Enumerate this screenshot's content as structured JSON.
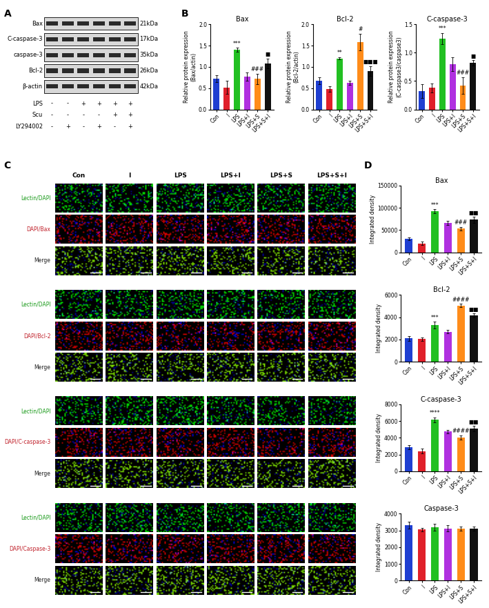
{
  "blot": {
    "panel": "A",
    "proteins": [
      {
        "name": "Bax",
        "kda": "21kDa"
      },
      {
        "name": "C-caspase-3",
        "kda": "17kDa"
      },
      {
        "name": "caspase-3",
        "kda": "35kDa"
      },
      {
        "name": "Bcl-2",
        "kda": "26kDa"
      },
      {
        "name": "β-actin",
        "kda": "42kDa"
      }
    ],
    "treatments": [
      {
        "name": "LPS",
        "marks": [
          "-",
          "-",
          "+",
          "+",
          "+",
          "+"
        ]
      },
      {
        "name": "Scu",
        "marks": [
          "-",
          "-",
          "-",
          "-",
          "+",
          "+"
        ]
      },
      {
        "name": "LY294002",
        "marks": [
          "-",
          "+",
          "-",
          "+",
          "-",
          "+"
        ]
      }
    ]
  },
  "microscopy": {
    "panel": "C",
    "columns": [
      "Con",
      "I",
      "LPS",
      "LPS+I",
      "LPS+S",
      "LPS+S+I"
    ],
    "groups": [
      [
        "Lectin/DAPI",
        "DAPI/Bax",
        "Merge"
      ],
      [
        "Lectin/DAPI",
        "DAPI/Bcl-2",
        "Merge"
      ],
      [
        "Lectin/DAPI",
        "DAPI/C-caspase-3",
        "Merge"
      ],
      [
        "Lectin/DAPI",
        "DAPI/Caspase-3",
        "Merge"
      ]
    ]
  },
  "chart_data": [
    {
      "type": "bar",
      "panel": "B",
      "title": "Bax",
      "ylabel": "Relative protein expression\n(Bax/actin)",
      "categories": [
        "Con",
        "I",
        "LPS",
        "LPS+I",
        "LPS+S",
        "LPS+S+I"
      ],
      "values": [
        0.72,
        0.52,
        1.4,
        0.77,
        0.72,
        1.08
      ],
      "errors": [
        0.08,
        0.15,
        0.05,
        0.1,
        0.12,
        0.12
      ],
      "colors": [
        "#1f3fd1",
        "#e0202a",
        "#22c022",
        "#b030e0",
        "#ff8c1a",
        "#111111"
      ],
      "ylim": [
        0,
        2.0
      ],
      "yticks": [
        {
          "value": 0,
          "label": "0.0"
        },
        {
          "value": 0.5,
          "label": "0.5"
        },
        {
          "value": 1.0,
          "label": "1.0"
        },
        {
          "value": 1.5,
          "label": "1.5"
        },
        {
          "value": 2.0,
          "label": "2.0"
        }
      ],
      "annotations": [
        {
          "category": "LPS",
          "text": "***"
        },
        {
          "category": "LPS+S",
          "text": "###"
        },
        {
          "category": "LPS+S+I",
          "text": "■"
        }
      ]
    },
    {
      "type": "bar",
      "panel": "B",
      "title": "Bcl-2",
      "ylabel": "Relative protein expression\n(Bcl-2/actin)",
      "categories": [
        "Con",
        "I",
        "LPS",
        "LPS+I",
        "LPS+S",
        "LPS+S+I"
      ],
      "values": [
        0.68,
        0.48,
        1.2,
        0.62,
        1.58,
        0.9
      ],
      "errors": [
        0.08,
        0.06,
        0.03,
        0.05,
        0.2,
        0.12
      ],
      "colors": [
        "#1f3fd1",
        "#e0202a",
        "#22c022",
        "#b030e0",
        "#ff8c1a",
        "#111111"
      ],
      "ylim": [
        0,
        2.0
      ],
      "yticks": [
        {
          "value": 0,
          "label": "0.0"
        },
        {
          "value": 0.5,
          "label": "0.5"
        },
        {
          "value": 1.0,
          "label": "1.0"
        },
        {
          "value": 1.5,
          "label": "1.5"
        },
        {
          "value": 2.0,
          "label": "2.0"
        }
      ],
      "annotations": [
        {
          "category": "LPS",
          "text": "**"
        },
        {
          "category": "LPS+S",
          "text": "#"
        },
        {
          "category": "LPS+S+I",
          "text": "■■■"
        }
      ]
    },
    {
      "type": "bar",
      "panel": "B",
      "title": "C-caspase-3",
      "ylabel": "Relative protein expression\n(C-caspase3/caspase3)",
      "categories": [
        "Con",
        "I",
        "LPS",
        "LPS+I",
        "LPS+S",
        "LPS+S+I"
      ],
      "values": [
        0.32,
        0.38,
        1.25,
        0.8,
        0.42,
        0.82
      ],
      "errors": [
        0.12,
        0.08,
        0.1,
        0.12,
        0.15,
        0.05
      ],
      "colors": [
        "#1f3fd1",
        "#e0202a",
        "#22c022",
        "#b030e0",
        "#ff8c1a",
        "#111111"
      ],
      "ylim": [
        0,
        1.5
      ],
      "yticks": [
        {
          "value": 0,
          "label": "0.0"
        },
        {
          "value": 0.5,
          "label": "0.5"
        },
        {
          "value": 1.0,
          "label": "1.0"
        },
        {
          "value": 1.5,
          "label": "1.5"
        }
      ],
      "annotations": [
        {
          "category": "LPS",
          "text": "***"
        },
        {
          "category": "LPS+S",
          "text": "###"
        },
        {
          "category": "LPS+S+I",
          "text": "■"
        }
      ]
    },
    {
      "type": "bar",
      "panel": "D",
      "title": "Bax",
      "ylabel": "Integrated density",
      "categories": [
        "Con",
        "I",
        "LPS",
        "LPS+I",
        "LPS+S",
        "LPS+S+I"
      ],
      "values": [
        31000,
        20000,
        92000,
        66000,
        53000,
        73000
      ],
      "errors": [
        3000,
        3500,
        5000,
        5000,
        4000,
        7000
      ],
      "colors": [
        "#1f3fd1",
        "#e0202a",
        "#22c022",
        "#b030e0",
        "#ff8c1a",
        "#111111"
      ],
      "ylim": [
        0,
        150000
      ],
      "yticks": [
        0,
        50000,
        100000,
        150000
      ],
      "annotations": [
        {
          "category": "LPS",
          "text": "***"
        },
        {
          "category": "LPS+S",
          "text": "###"
        },
        {
          "category": "LPS+S+I",
          "text": "■■"
        }
      ]
    },
    {
      "type": "bar",
      "panel": "D",
      "title": "Bcl-2",
      "ylabel": "Integrated density",
      "categories": [
        "Con",
        "I",
        "LPS",
        "LPS+I",
        "LPS+S",
        "LPS+S+I"
      ],
      "values": [
        2100,
        2050,
        3300,
        2700,
        5050,
        4150
      ],
      "errors": [
        200,
        150,
        300,
        150,
        150,
        200
      ],
      "colors": [
        "#1f3fd1",
        "#e0202a",
        "#22c022",
        "#b030e0",
        "#ff8c1a",
        "#111111"
      ],
      "ylim": [
        0,
        6000
      ],
      "yticks": [
        0,
        2000,
        4000,
        6000
      ],
      "annotations": [
        {
          "category": "LPS",
          "text": "***"
        },
        {
          "category": "LPS+S",
          "text": "####"
        },
        {
          "category": "LPS+S+I",
          "text": "■■"
        }
      ]
    },
    {
      "type": "bar",
      "panel": "D",
      "title": "C-caspase-3",
      "ylabel": "Integrated density",
      "categories": [
        "Con",
        "I",
        "LPS",
        "LPS+I",
        "LPS+S",
        "LPS+S+I"
      ],
      "values": [
        2900,
        2400,
        6150,
        4750,
        4050,
        5100
      ],
      "errors": [
        250,
        300,
        300,
        200,
        250,
        300
      ],
      "colors": [
        "#1f3fd1",
        "#e0202a",
        "#22c022",
        "#b030e0",
        "#ff8c1a",
        "#111111"
      ],
      "ylim": [
        0,
        8000
      ],
      "yticks": [
        0,
        2000,
        4000,
        6000,
        8000
      ],
      "annotations": [
        {
          "category": "LPS",
          "text": "****"
        },
        {
          "category": "LPS+S",
          "text": "####"
        },
        {
          "category": "LPS+S+I",
          "text": "■■"
        }
      ]
    },
    {
      "type": "bar",
      "panel": "D",
      "title": "Caspase-3",
      "ylabel": "Integrated density",
      "categories": [
        "Con",
        "I",
        "LPS",
        "LPS+I",
        "LPS+S",
        "LPS+S+I"
      ],
      "values": [
        3320,
        3060,
        3200,
        3130,
        3100,
        3100
      ],
      "errors": [
        200,
        100,
        200,
        200,
        120,
        120
      ],
      "colors": [
        "#1f3fd1",
        "#e0202a",
        "#22c022",
        "#b030e0",
        "#ff8c1a",
        "#111111"
      ],
      "ylim": [
        0,
        4000
      ],
      "yticks": [
        0,
        1000,
        2000,
        3000,
        4000
      ],
      "annotations": []
    }
  ]
}
